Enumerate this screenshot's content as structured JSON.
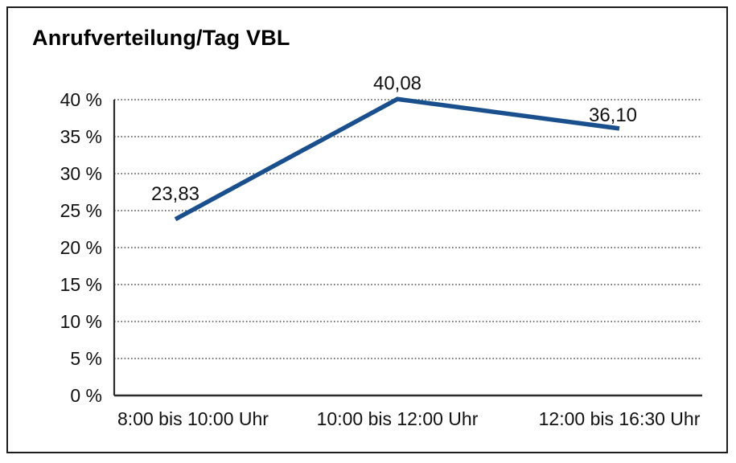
{
  "title": "Anrufverteilung/Tag VBL",
  "chart_data": {
    "type": "line",
    "title": "Anrufverteilung/Tag VBL",
    "categories": [
      "8:00 bis 10:00 Uhr",
      "10:00 bis 12:00 Uhr",
      "12:00 bis 16:30 Uhr"
    ],
    "values": [
      23.83,
      40.08,
      36.1
    ],
    "value_labels": [
      "23,83",
      "40,08",
      "36,10"
    ],
    "xlabel": "",
    "ylabel": "",
    "ylim": [
      0,
      40
    ],
    "y_tick_step": 5,
    "y_tick_labels": [
      "0 %",
      "5 %",
      "10 %",
      "15 %",
      "20 %",
      "25 %",
      "30 %",
      "35 %",
      "40 %"
    ],
    "grid": "horizontal-dotted",
    "legend": "none",
    "colors": {
      "line": "#1a4f8e",
      "grid": "#4d4d4d",
      "axis": "#2b2b2b",
      "text": "#111111",
      "frame": "#1c1c1c",
      "background": "#ffffff"
    }
  }
}
